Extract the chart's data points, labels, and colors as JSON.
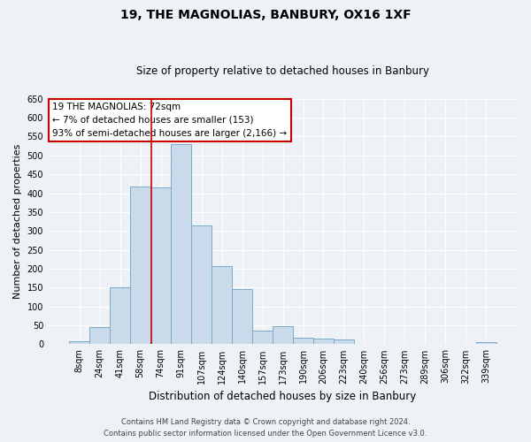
{
  "title": "19, THE MAGNOLIAS, BANBURY, OX16 1XF",
  "subtitle": "Size of property relative to detached houses in Banbury",
  "xlabel": "Distribution of detached houses by size in Banbury",
  "ylabel": "Number of detached properties",
  "categories": [
    "8sqm",
    "24sqm",
    "41sqm",
    "58sqm",
    "74sqm",
    "91sqm",
    "107sqm",
    "124sqm",
    "140sqm",
    "157sqm",
    "173sqm",
    "190sqm",
    "206sqm",
    "223sqm",
    "240sqm",
    "256sqm",
    "273sqm",
    "289sqm",
    "306sqm",
    "322sqm",
    "339sqm"
  ],
  "values": [
    8,
    45,
    150,
    418,
    416,
    530,
    314,
    206,
    145,
    35,
    48,
    18,
    14,
    12,
    0,
    0,
    0,
    0,
    0,
    0,
    5
  ],
  "bar_color": "#c9daea",
  "bar_edge_color": "#7aaac8",
  "reference_line_index": 3.55,
  "reference_line_color": "#cc0000",
  "annotation_text": "19 THE MAGNOLIAS: 72sqm\n← 7% of detached houses are smaller (153)\n93% of semi-detached houses are larger (2,166) →",
  "annotation_box_color": "#ffffff",
  "annotation_box_edge": "#cc0000",
  "ylim": [
    0,
    650
  ],
  "yticks": [
    0,
    50,
    100,
    150,
    200,
    250,
    300,
    350,
    400,
    450,
    500,
    550,
    600,
    650
  ],
  "footer_line1": "Contains HM Land Registry data © Crown copyright and database right 2024.",
  "footer_line2": "Contains public sector information licensed under the Open Government Licence v3.0.",
  "bg_color": "#eef2f7",
  "grid_color": "#ffffff",
  "title_fontsize": 10,
  "subtitle_fontsize": 8.5,
  "ylabel_fontsize": 8,
  "xlabel_fontsize": 8.5,
  "tick_fontsize": 7,
  "annotation_fontsize": 7.5,
  "footer_fontsize": 6
}
